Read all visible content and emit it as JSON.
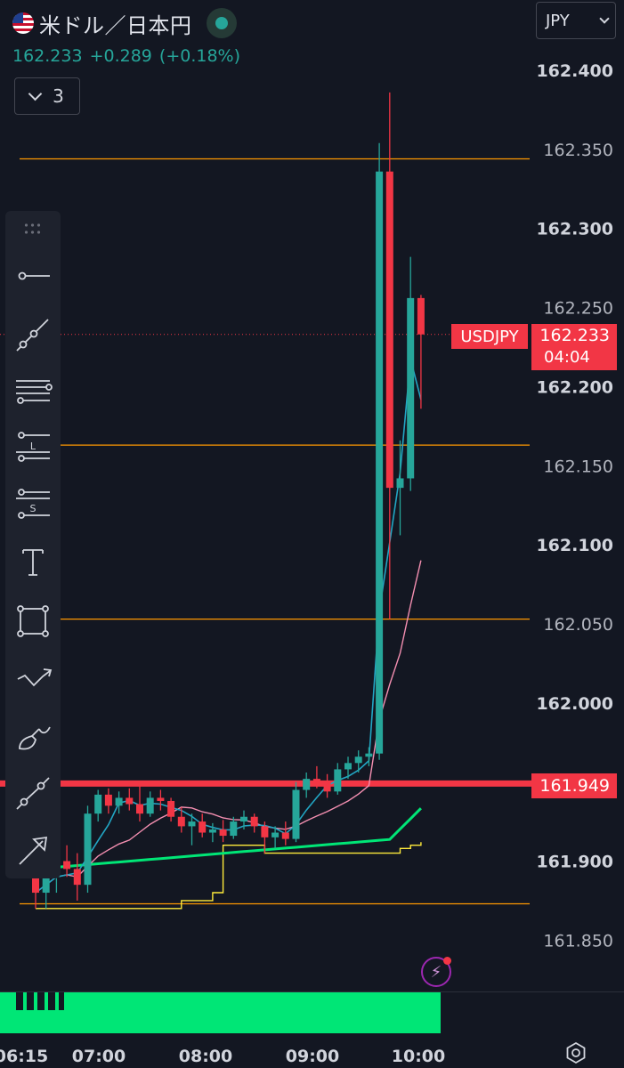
{
  "header": {
    "title": "米ドル／日本円",
    "last": "162.233",
    "change": "+0.289",
    "change_pct": "(+0.18%)",
    "indicator_count": "3",
    "currency": "JPY"
  },
  "colors": {
    "background": "#131722",
    "up": "#26a69a",
    "down": "#f23645",
    "horizontal_line": "#ff9800",
    "ma_fast": "#22a6c4",
    "ma_slow": "#f48fb1",
    "ma_trend": "#00e676",
    "step_line": "#ffeb3b"
  },
  "toolbar": {
    "tools": [
      "horizontal-line-icon",
      "trend-line-icon",
      "pitchfork-icon",
      "long-position-icon",
      "short-position-icon",
      "text-icon",
      "rectangle-icon",
      "path-icon",
      "brush-icon",
      "measure-icon",
      "arrow-icon"
    ]
  },
  "price_marks": {
    "symbol": "USDJPY",
    "current_price": "162.233",
    "countdown": "04:04",
    "red_line_price": "161.949"
  },
  "chart_data": {
    "type": "candlestick",
    "title": "",
    "y_ticks": [
      "162.400",
      "162.350",
      "162.300",
      "162.250",
      "162.200",
      "162.150",
      "162.100",
      "162.050",
      "162.000",
      "161.950",
      "161.900",
      "161.850"
    ],
    "x_ticks": [
      "06:15",
      "07:00",
      "08:00",
      "09:00",
      "10:00"
    ],
    "ylim": [
      161.82,
      162.42
    ],
    "horizontal_lines": [
      162.344,
      162.163,
      162.053,
      161.873
    ],
    "red_support": 161.949,
    "current_price": 162.233,
    "candles_note": "5-minute candles (open, high, low, close)",
    "candles": [
      {
        "o": 161.9,
        "h": 161.9,
        "l": 161.87,
        "c": 161.88
      },
      {
        "o": 161.88,
        "h": 161.9,
        "l": 161.87,
        "c": 161.89
      },
      {
        "o": 161.89,
        "h": 161.91,
        "l": 161.88,
        "c": 161.9
      },
      {
        "o": 161.9,
        "h": 161.91,
        "l": 161.89,
        "c": 161.895
      },
      {
        "o": 161.895,
        "h": 161.905,
        "l": 161.875,
        "c": 161.885
      },
      {
        "o": 161.885,
        "h": 161.935,
        "l": 161.88,
        "c": 161.93
      },
      {
        "o": 161.93,
        "h": 161.945,
        "l": 161.925,
        "c": 161.942
      },
      {
        "o": 161.942,
        "h": 161.946,
        "l": 161.93,
        "c": 161.935
      },
      {
        "o": 161.935,
        "h": 161.944,
        "l": 161.93,
        "c": 161.94
      },
      {
        "o": 161.94,
        "h": 161.946,
        "l": 161.932,
        "c": 161.936
      },
      {
        "o": 161.936,
        "h": 161.948,
        "l": 161.925,
        "c": 161.93
      },
      {
        "o": 161.93,
        "h": 161.944,
        "l": 161.928,
        "c": 161.94
      },
      {
        "o": 161.94,
        "h": 161.945,
        "l": 161.932,
        "c": 161.938
      },
      {
        "o": 161.938,
        "h": 161.94,
        "l": 161.925,
        "c": 161.928
      },
      {
        "o": 161.928,
        "h": 161.934,
        "l": 161.918,
        "c": 161.922
      },
      {
        "o": 161.922,
        "h": 161.93,
        "l": 161.91,
        "c": 161.925
      },
      {
        "o": 161.925,
        "h": 161.93,
        "l": 161.915,
        "c": 161.918
      },
      {
        "o": 161.918,
        "h": 161.924,
        "l": 161.912,
        "c": 161.92
      },
      {
        "o": 161.92,
        "h": 161.926,
        "l": 161.912,
        "c": 161.916
      },
      {
        "o": 161.916,
        "h": 161.928,
        "l": 161.914,
        "c": 161.925
      },
      {
        "o": 161.925,
        "h": 161.932,
        "l": 161.92,
        "c": 161.928
      },
      {
        "o": 161.928,
        "h": 161.93,
        "l": 161.918,
        "c": 161.922
      },
      {
        "o": 161.922,
        "h": 161.925,
        "l": 161.905,
        "c": 161.915
      },
      {
        "o": 161.915,
        "h": 161.922,
        "l": 161.908,
        "c": 161.918
      },
      {
        "o": 161.918,
        "h": 161.925,
        "l": 161.91,
        "c": 161.914
      },
      {
        "o": 161.914,
        "h": 161.95,
        "l": 161.912,
        "c": 161.945
      },
      {
        "o": 161.945,
        "h": 161.956,
        "l": 161.94,
        "c": 161.952
      },
      {
        "o": 161.952,
        "h": 161.96,
        "l": 161.946,
        "c": 161.95
      },
      {
        "o": 161.95,
        "h": 161.955,
        "l": 161.94,
        "c": 161.944
      },
      {
        "o": 161.944,
        "h": 161.962,
        "l": 161.942,
        "c": 161.958
      },
      {
        "o": 161.958,
        "h": 161.966,
        "l": 161.952,
        "c": 161.962
      },
      {
        "o": 161.962,
        "h": 161.97,
        "l": 161.956,
        "c": 161.966
      },
      {
        "o": 161.966,
        "h": 161.972,
        "l": 161.96,
        "c": 161.968
      },
      {
        "o": 161.968,
        "h": 162.354,
        "l": 161.964,
        "c": 162.336
      },
      {
        "o": 162.336,
        "h": 162.386,
        "l": 162.053,
        "c": 162.136
      },
      {
        "o": 162.136,
        "h": 162.166,
        "l": 162.106,
        "c": 162.142
      },
      {
        "o": 162.142,
        "h": 162.282,
        "l": 162.134,
        "c": 162.256
      },
      {
        "o": 162.256,
        "h": 162.258,
        "l": 162.186,
        "c": 162.233
      }
    ]
  }
}
